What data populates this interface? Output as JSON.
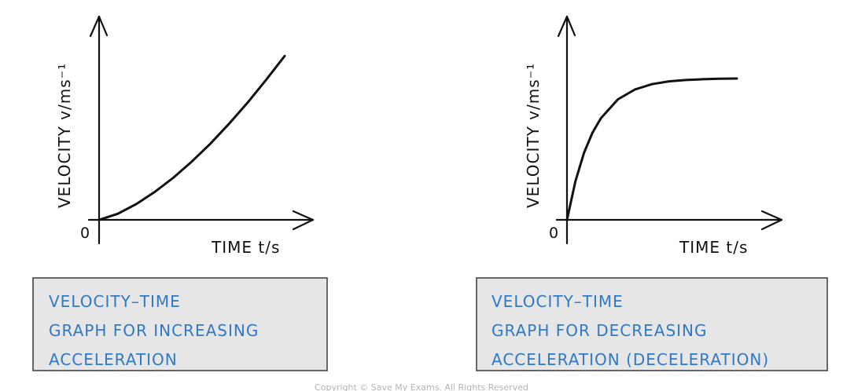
{
  "theme": {
    "ink": "#111111",
    "caption_text_color": "#2f79c7",
    "caption_fill": "#e6e6e6",
    "caption_border": "#444444",
    "copyright_color": "#b5b5b5"
  },
  "chart_data": [
    {
      "type": "line",
      "title": "",
      "ylabel": "VELOCITY   v/ms⁻¹",
      "xlabel": "TIME   t/s",
      "origin_label": "0",
      "grid": false,
      "axis_arrows": true,
      "x_ticks": false,
      "y_ticks": false,
      "series": [
        {
          "x": [
            0,
            0.1,
            0.2,
            0.3,
            0.4,
            0.5,
            0.6,
            0.7,
            0.8,
            0.9,
            1.0
          ],
          "y": [
            0,
            0.031,
            0.081,
            0.144,
            0.217,
            0.301,
            0.393,
            0.495,
            0.604,
            0.722,
            0.845
          ]
        }
      ],
      "caption": [
        "VELOCITY–TIME",
        "GRAPH  FOR  INCREASING",
        "ACCELERATION"
      ]
    },
    {
      "type": "line",
      "title": "",
      "ylabel": "VELOCITY   v/ms⁻¹",
      "xlabel": "TIME   t/s",
      "origin_label": "0",
      "grid": false,
      "axis_arrows": true,
      "x_ticks": false,
      "y_ticks": false,
      "series": [
        {
          "x": [
            0,
            0.05,
            0.1,
            0.15,
            0.2,
            0.3,
            0.4,
            0.5,
            0.6,
            0.7,
            0.8,
            0.9,
            1.0
          ],
          "y": [
            0,
            0.233,
            0.402,
            0.523,
            0.611,
            0.724,
            0.783,
            0.815,
            0.832,
            0.84,
            0.845,
            0.848,
            0.849
          ]
        }
      ],
      "caption": [
        "VELOCITY–TIME",
        "GRAPH  FOR  DECREASING",
        "ACCELERATION   (DECELERATION)"
      ]
    }
  ],
  "copyright": "Copyright © Save My Exams. All Rights Reserved"
}
